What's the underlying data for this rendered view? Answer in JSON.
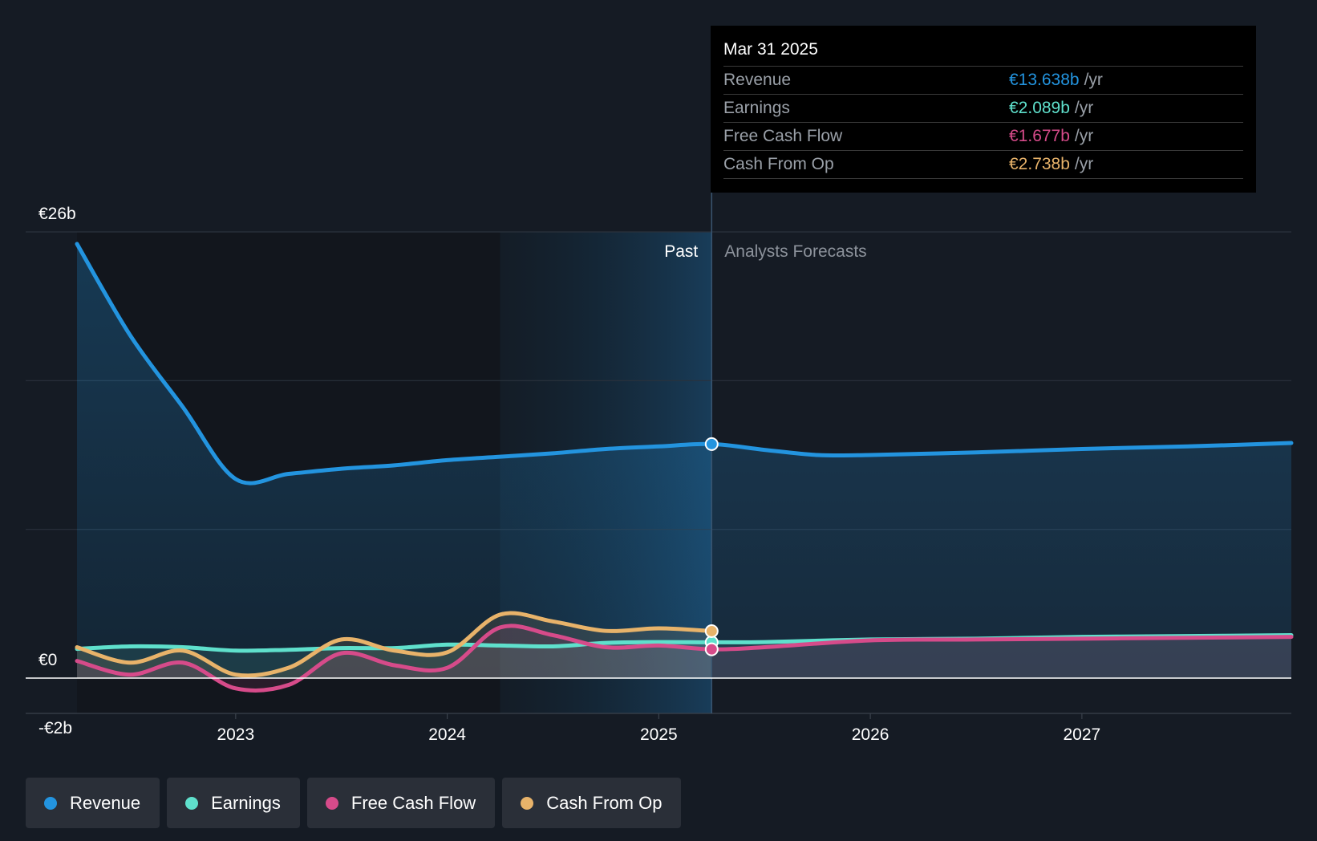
{
  "colors": {
    "background": "#151b24",
    "revenue": "#2394df",
    "earnings": "#5fe0cc",
    "free_cash_flow": "#d64b8a",
    "cash_from_op": "#e8b36a"
  },
  "tooltip": {
    "date": "Mar 31 2025",
    "rows": [
      {
        "label": "Revenue",
        "value": "€13.638b",
        "unit": "/yr",
        "color": "#2394df"
      },
      {
        "label": "Earnings",
        "value": "€2.089b",
        "unit": "/yr",
        "color": "#5fe0cc"
      },
      {
        "label": "Free Cash Flow",
        "value": "€1.677b",
        "unit": "/yr",
        "color": "#d64b8a"
      },
      {
        "label": "Cash From Op",
        "value": "€2.738b",
        "unit": "/yr",
        "color": "#e8b36a"
      }
    ]
  },
  "legend": [
    {
      "label": "Revenue",
      "color": "#2394df"
    },
    {
      "label": "Earnings",
      "color": "#5fe0cc"
    },
    {
      "label": "Free Cash Flow",
      "color": "#d64b8a"
    },
    {
      "label": "Cash From Op",
      "color": "#e8b36a"
    }
  ],
  "chart_data": {
    "type": "line",
    "y_tick_labels": [
      "€26b",
      "€0",
      "-€2b"
    ],
    "ylim": [
      -2,
      26
    ],
    "x_tick_labels": [
      "2023",
      "2024",
      "2025",
      "2026",
      "2027"
    ],
    "xlim": [
      2022.25,
      2027.99
    ],
    "past_label": "Past",
    "forecast_label": "Analysts Forecasts",
    "divider_x": 2025.25,
    "highlight_start": 2024.25,
    "grid": true,
    "series": [
      {
        "name": "Revenue",
        "color": "#2394df",
        "fill": true,
        "points": [
          [
            2022.25,
            25.3
          ],
          [
            2022.5,
            20.0
          ],
          [
            2022.75,
            15.8
          ],
          [
            2023.0,
            11.6
          ],
          [
            2023.25,
            11.9
          ],
          [
            2023.5,
            12.2
          ],
          [
            2023.75,
            12.4
          ],
          [
            2024.0,
            12.7
          ],
          [
            2024.25,
            12.9
          ],
          [
            2024.5,
            13.1
          ],
          [
            2024.75,
            13.35
          ],
          [
            2025.0,
            13.5
          ],
          [
            2025.25,
            13.638
          ],
          [
            2025.5,
            13.3
          ],
          [
            2025.75,
            13.0
          ],
          [
            2026.0,
            13.0
          ],
          [
            2026.5,
            13.15
          ],
          [
            2027.0,
            13.35
          ],
          [
            2027.5,
            13.5
          ],
          [
            2027.99,
            13.7
          ]
        ]
      },
      {
        "name": "Earnings",
        "color": "#5fe0cc",
        "fill": true,
        "points": [
          [
            2022.25,
            1.7
          ],
          [
            2022.5,
            1.85
          ],
          [
            2022.75,
            1.8
          ],
          [
            2023.0,
            1.6
          ],
          [
            2023.25,
            1.65
          ],
          [
            2023.5,
            1.75
          ],
          [
            2023.75,
            1.75
          ],
          [
            2024.0,
            1.95
          ],
          [
            2024.25,
            1.9
          ],
          [
            2024.5,
            1.85
          ],
          [
            2024.75,
            2.05
          ],
          [
            2025.0,
            2.1
          ],
          [
            2025.25,
            2.089
          ],
          [
            2025.5,
            2.1
          ],
          [
            2026.0,
            2.25
          ],
          [
            2026.5,
            2.3
          ],
          [
            2027.0,
            2.4
          ],
          [
            2027.5,
            2.45
          ],
          [
            2027.99,
            2.5
          ]
        ]
      },
      {
        "name": "Free Cash Flow",
        "color": "#d64b8a",
        "fill": true,
        "points": [
          [
            2022.25,
            1.0
          ],
          [
            2022.5,
            0.2
          ],
          [
            2022.75,
            0.9
          ],
          [
            2023.0,
            -0.6
          ],
          [
            2023.25,
            -0.4
          ],
          [
            2023.5,
            1.45
          ],
          [
            2023.75,
            0.75
          ],
          [
            2024.0,
            0.6
          ],
          [
            2024.25,
            2.95
          ],
          [
            2024.5,
            2.5
          ],
          [
            2024.75,
            1.8
          ],
          [
            2025.0,
            1.9
          ],
          [
            2025.25,
            1.677
          ],
          [
            2025.5,
            1.8
          ],
          [
            2026.0,
            2.2
          ],
          [
            2026.5,
            2.25
          ],
          [
            2027.0,
            2.3
          ],
          [
            2027.5,
            2.35
          ],
          [
            2027.99,
            2.4
          ]
        ]
      },
      {
        "name": "Cash From Op",
        "color": "#e8b36a",
        "fill": true,
        "points": [
          [
            2022.25,
            1.8
          ],
          [
            2022.5,
            0.9
          ],
          [
            2022.75,
            1.6
          ],
          [
            2023.0,
            0.2
          ],
          [
            2023.25,
            0.6
          ],
          [
            2023.5,
            2.25
          ],
          [
            2023.75,
            1.6
          ],
          [
            2024.0,
            1.5
          ],
          [
            2024.25,
            3.7
          ],
          [
            2024.5,
            3.3
          ],
          [
            2024.75,
            2.75
          ],
          [
            2025.0,
            2.9
          ],
          [
            2025.25,
            2.738
          ]
        ]
      }
    ]
  }
}
